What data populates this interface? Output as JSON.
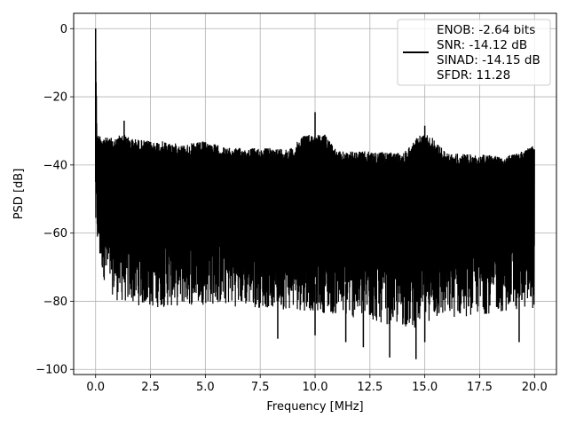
{
  "chart_data": {
    "type": "line",
    "title": "",
    "xlabel": "Frequency [MHz]",
    "ylabel": "PSD [dB]",
    "xlim": [
      -1.0,
      21.0
    ],
    "ylim": [
      -101.5,
      4.5
    ],
    "xticks": [
      0.0,
      2.5,
      5.0,
      7.5,
      10.0,
      12.5,
      15.0,
      17.5,
      20.0
    ],
    "xtick_labels": [
      "0.0",
      "2.5",
      "5.0",
      "7.5",
      "10.0",
      "12.5",
      "15.0",
      "17.5",
      "20.0"
    ],
    "yticks": [
      0,
      -20,
      -40,
      -60,
      -80,
      -100
    ],
    "ytick_labels": [
      "0",
      "−20",
      "−40",
      "−60",
      "−80",
      "−100"
    ],
    "grid": true,
    "legend_position": "top-right",
    "legend_lines": [
      "ENOB: -2.64 bits",
      "SNR: -14.12 dB",
      "SINAD: -14.15 dB",
      "SFDR: 11.28"
    ],
    "series": [
      {
        "color": "#000000",
        "upper_envelope": {
          "x": [
            0.0,
            0.05,
            0.1,
            0.2,
            0.5,
            1.0,
            1.3,
            1.5,
            2.5,
            3.0,
            4.0,
            5.0,
            6.0,
            7.5,
            9.0,
            10.0,
            11.0,
            12.5,
            14.0,
            15.0,
            16.0,
            17.5,
            19.0,
            20.0
          ],
          "y": [
            0,
            -24,
            -28,
            -30,
            -31,
            -31,
            -27,
            -31,
            -32,
            -32,
            -33,
            -32,
            -34,
            -34,
            -34,
            -24.5,
            -35,
            -35,
            -35.5,
            -28.5,
            -35.5,
            -36,
            -36,
            -33
          ]
        },
        "lower_envelope": {
          "x": [
            0.0,
            0.2,
            0.5,
            1.0,
            2.5,
            5.0,
            7.5,
            10.0,
            12.5,
            14.5,
            15.0,
            17.5,
            20.0
          ],
          "y": [
            -62,
            -70,
            -76,
            -80,
            -82,
            -81,
            -82,
            -83,
            -86,
            -88,
            -86,
            -84,
            -82
          ]
        },
        "spikes": [
          {
            "x": 0.0,
            "y": 0
          },
          {
            "x": 1.3,
            "y": -27
          },
          {
            "x": 10.0,
            "y": -24.5
          },
          {
            "x": 15.0,
            "y": -28.5
          }
        ],
        "deep_dips": [
          {
            "x": 8.3,
            "y": -91
          },
          {
            "x": 10.0,
            "y": -90
          },
          {
            "x": 11.4,
            "y": -92
          },
          {
            "x": 12.2,
            "y": -93.5
          },
          {
            "x": 13.4,
            "y": -96.5
          },
          {
            "x": 14.6,
            "y": -97
          },
          {
            "x": 15.0,
            "y": -92
          },
          {
            "x": 19.3,
            "y": -92
          }
        ]
      }
    ]
  }
}
